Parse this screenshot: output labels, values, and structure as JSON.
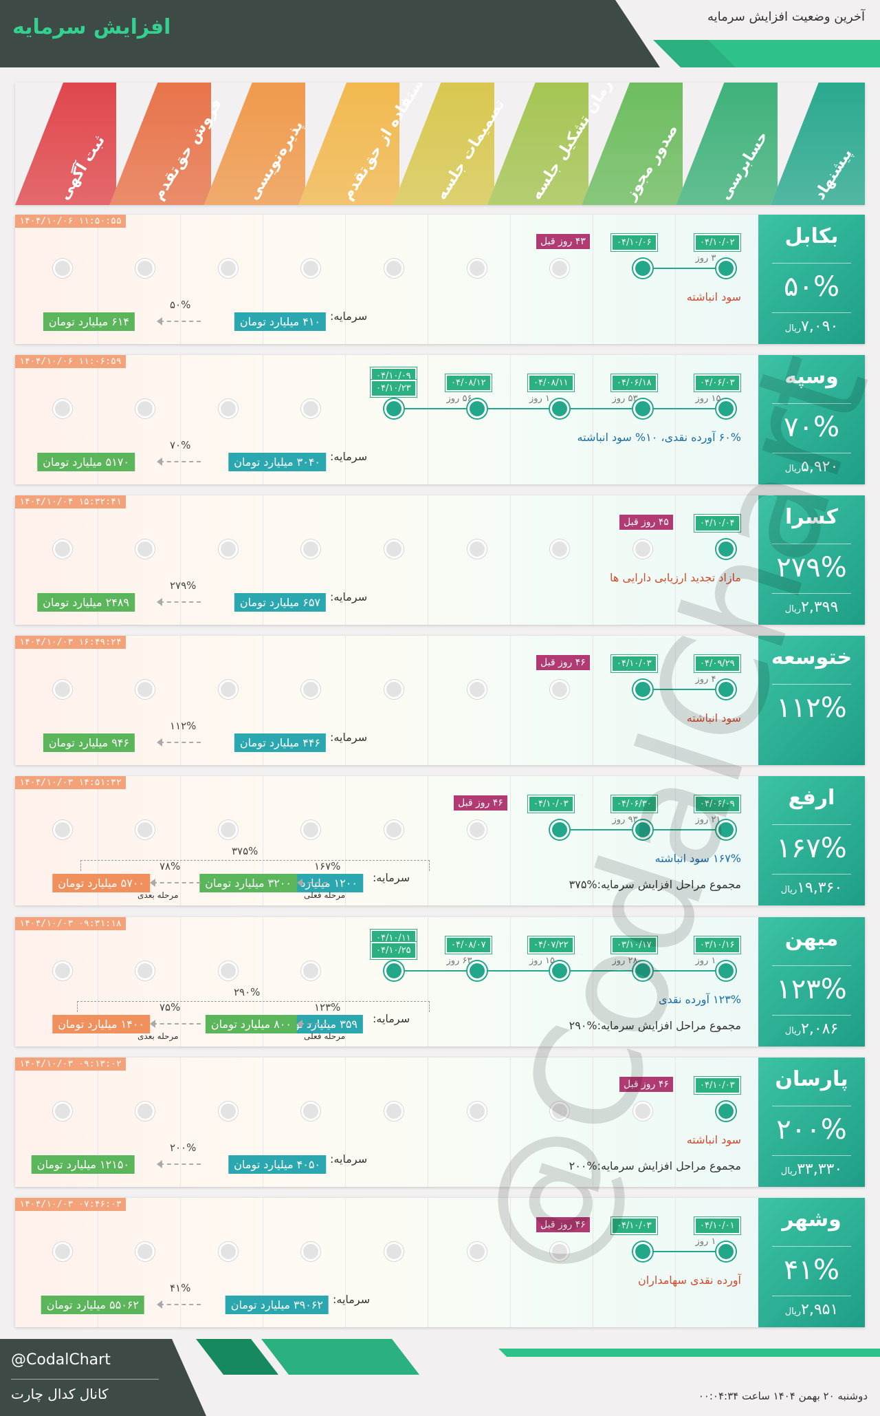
{
  "header": {
    "title": "افزایش سرمایه",
    "subtitle": "آخرین وضعیت افزایش سرمایه"
  },
  "stages": [
    {
      "label": "ثبت آگهی",
      "color": "#e0474c"
    },
    {
      "label": "فروش حق‌تقدم",
      "color": "#e8744a"
    },
    {
      "label": "پذیره‌نویسی",
      "color": "#f09a4c"
    },
    {
      "label": "استفاده از حق‌تقدم",
      "color": "#f2b94f"
    },
    {
      "label": "تصمیمات جلسه",
      "color": "#d8c850"
    },
    {
      "label": "زمان تشکیل جلسه",
      "color": "#a5c553"
    },
    {
      "label": "صدور مجوز",
      "color": "#6dbd5f"
    },
    {
      "label": "حسابرسی",
      "color": "#3fb27a"
    },
    {
      "label": "پیشنهاد",
      "color": "#2aa98f"
    }
  ],
  "cards": [
    {
      "name": "بکابل",
      "pct": "۵۰%",
      "price": "۷,۰۹۰",
      "price_unit": "ریال",
      "timestamp": "۱۴۰۴/۱۰/۰۶ ۱۱:۵۰:۵۵",
      "dates": [
        "۰۴/۱۰/۰۲",
        "۰۴/۱۰/۰۶"
      ],
      "ago": "۴۳ روز قبل",
      "gaps": [
        "۳ روز"
      ],
      "desc": "سود انباشته",
      "desc_blue": false,
      "capital_label": "سرمایه:",
      "capital_now": "۴۱۰ میلیارد تومان",
      "capital_pct": "۵۰%",
      "capital_after": "۶۱۴ میلیارد تومان"
    },
    {
      "name": "وسپه",
      "pct": "۷۰%",
      "price": "۵,۹۲۰",
      "price_unit": "ریال",
      "timestamp": "۱۴۰۴/۱۰/۰۶ ۱۱:۰۶:۵۹",
      "dates": [
        "۰۴/۰۶/۰۳",
        "۰۴/۰۶/۱۸",
        "۰۴/۰۸/۱۱",
        "۰۴/۰۸/۱۲",
        "۰۴/۱۰/۰۹",
        "۰۴/۱۰/۲۳"
      ],
      "gaps": [
        "۱۵ روز",
        "۵۳ روز",
        "۱ روز",
        "۵۶ روز"
      ],
      "desc": "۶۰% آورده نقدی، ۱۰% سود انباشته",
      "desc_blue": true,
      "capital_label": "سرمایه:",
      "capital_now": "۳۰۴۰ میلیارد تومان",
      "capital_pct": "۷۰%",
      "capital_after": "۵۱۷۰ میلیارد تومان"
    },
    {
      "name": "کسرا",
      "pct": "۲۷۹%",
      "price": "۲,۳۹۹",
      "price_unit": "ریال",
      "timestamp": "۱۴۰۴/۱۰/۰۴ ۱۵:۳۲:۴۱",
      "dates": [
        "۰۴/۱۰/۰۴"
      ],
      "ago": "۴۵ روز قبل",
      "desc": "مازاد تجدید ارزیابی دارایی ها",
      "desc_blue": false,
      "capital_label": "سرمایه:",
      "capital_now": "۶۵۷ میلیارد تومان",
      "capital_pct": "۲۷۹%",
      "capital_after": "۲۴۸۹ میلیارد تومان"
    },
    {
      "name": "ختوسعه",
      "pct": "۱۱۲%",
      "timestamp": "۱۴۰۴/۱۰/۰۳ ۱۶:۴۹:۲۴",
      "dates": [
        "۰۴/۰۹/۲۹",
        "۰۴/۱۰/۰۳"
      ],
      "ago": "۴۶ روز قبل",
      "gaps": [
        "۴ روز"
      ],
      "desc": "سود انباشته",
      "desc_blue": false,
      "capital_label": "سرمایه:",
      "capital_now": "۴۴۶ میلیارد تومان",
      "capital_pct": "۱۱۲%",
      "capital_after": "۹۴۶ میلیارد تومان"
    },
    {
      "name": "ارفع",
      "pct": "۱۶۷%",
      "price": "۱۹,۳۶۰",
      "price_unit": "ریال",
      "timestamp": "۱۴۰۴/۱۰/۰۳ ۱۴:۵۱:۳۲",
      "dates": [
        "۰۴/۰۶/۰۹",
        "۰۴/۰۶/۳۰",
        "۰۴/۱۰/۰۳"
      ],
      "ago": "۴۶ روز قبل",
      "gaps": [
        "۲۱ روز",
        "۹۳ روز"
      ],
      "desc": "۱۶۷% سود انباشته",
      "desc_blue": true,
      "total": "مجموع مراحل افزایش سرمایه:%۳۷۵",
      "capital_label": "سرمایه:",
      "capital_now": "۱۲۰۰ میلیارد تومان",
      "capital_pct": "۱۶۷%",
      "capital_after": "۳۲۰۰ میلیارد تومان",
      "stage_now": "مرحله فعلی",
      "next_pct": "۷۸%",
      "capital_next": "۵۷۰۰ میلیارد تومان",
      "stage_next": "مرحله بعدی",
      "bracket_pct": "۳۷۵%"
    },
    {
      "name": "میهن",
      "pct": "۱۲۳%",
      "price": "۲,۰۸۶",
      "price_unit": "ریال",
      "timestamp": "۱۴۰۴/۱۰/۰۳ ۰۹:۳۱:۱۸",
      "dates": [
        "۰۳/۱۰/۱۶",
        "۰۳/۱۰/۱۷",
        "۰۴/۰۷/۲۲",
        "۰۴/۰۸/۰۷",
        "۰۴/۱۰/۱۱",
        "۰۴/۱۰/۲۵"
      ],
      "gaps": [
        "۱ روز",
        "۲۸۰ روز",
        "۱۵ روز",
        "۶۳ روز"
      ],
      "desc": "۱۲۳% آورده نقدی",
      "desc_blue": true,
      "total": "مجموع مراحل افزایش سرمایه:%۲۹۰",
      "capital_label": "سرمایه:",
      "capital_now": "۳۵۹ میلیارد تومان",
      "capital_pct": "۱۲۳%",
      "capital_after": "۸۰۰ میلیارد تومان",
      "stage_now": "مرحله فعلی",
      "next_pct": "۷۵%",
      "capital_next": "۱۴۰۰ میلیارد تومان",
      "stage_next": "مرحله بعدی",
      "bracket_pct": "۲۹۰%"
    },
    {
      "name": "پارسان",
      "pct": "۲۰۰%",
      "price": "۳۳,۳۳۰",
      "price_unit": "ریال",
      "timestamp": "۱۴۰۴/۱۰/۰۳ ۰۹:۱۳:۰۲",
      "dates": [
        "۰۴/۱۰/۰۳"
      ],
      "ago": "۴۶ روز قبل",
      "desc": "سود انباشته",
      "desc_blue": false,
      "total": "مجموع مراحل افزایش سرمایه:%۲۰۰",
      "capital_label": "سرمایه:",
      "capital_now": "۴۰۵۰ میلیارد تومان",
      "capital_pct": "۲۰۰%",
      "capital_after": "۱۲۱۵۰ میلیارد تومان"
    },
    {
      "name": "وشهر",
      "pct": "۴۱%",
      "price": "۲,۹۵۱",
      "price_unit": "ریال",
      "timestamp": "۱۴۰۴/۱۰/۰۳ ۰۷:۴۶:۰۳",
      "dates": [
        "۰۴/۱۰/۰۱",
        "۰۴/۱۰/۰۳"
      ],
      "ago": "۴۶ روز قبل",
      "gaps": [
        "۱ روز"
      ],
      "desc": "آورده نقدی سهامداران",
      "desc_blue": false,
      "capital_label": "سرمایه:",
      "capital_now": "۳۹۰۶۲ میلیارد تومان",
      "capital_pct": "۴۱%",
      "capital_after": "۵۵۰۶۲ میلیارد تومان"
    }
  ],
  "watermark": "@CodalChart",
  "footer": {
    "handle": "@CodalChart",
    "channel": "کانال کدال چارت",
    "date": "دوشنبه ۲۰ بهمن ۱۴۰۴ ساعت ۰۰:۰۴:۳۴"
  }
}
